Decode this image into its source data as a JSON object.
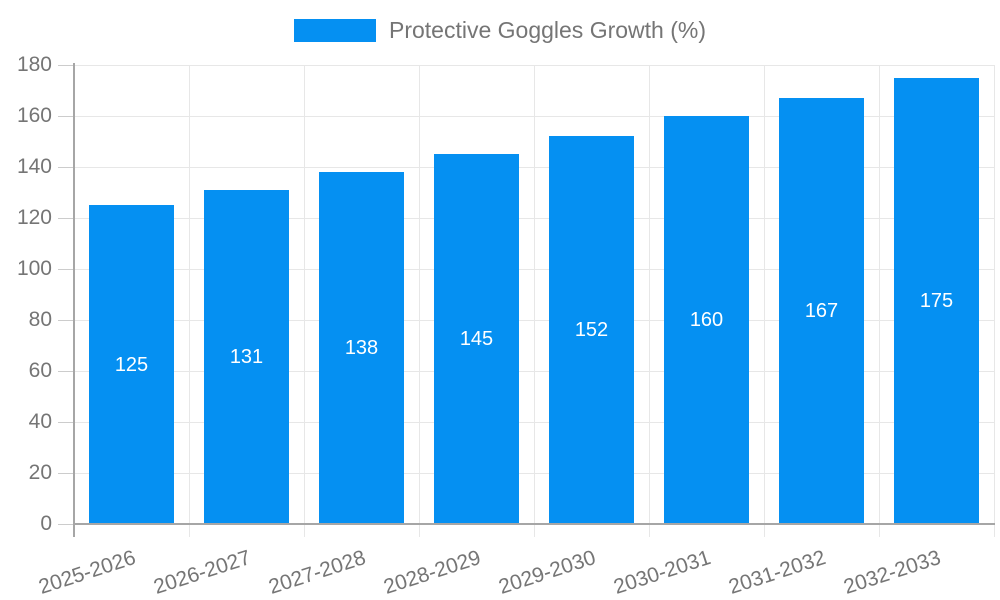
{
  "legend": {
    "label": "Protective Goggles Growth (%)",
    "swatch_color": "#0590f2"
  },
  "chart_data": {
    "type": "bar",
    "title": "Protective Goggles Growth (%)",
    "categories": [
      "2025-2026",
      "2026-2027",
      "2027-2028",
      "2028-2029",
      "2029-2030",
      "2030-2031",
      "2031-2032",
      "2032-2033"
    ],
    "values": [
      125,
      131,
      138,
      145,
      152,
      160,
      167,
      175
    ],
    "xlabel": "",
    "ylabel": "",
    "ylim": [
      0,
      180
    ],
    "yticks": [
      0,
      20,
      40,
      60,
      80,
      100,
      120,
      140,
      160,
      180
    ],
    "grid": true,
    "legend_position": "top",
    "bar_color": "#0590f2",
    "value_label_color": "#ffffff"
  },
  "colors": {
    "bar": "#0590f2",
    "grid": "#e7e7e7",
    "tick": "#cccccc",
    "axis": "#a6a6a6",
    "text": "#757575",
    "bar_label": "#ffffff",
    "background": "#ffffff"
  }
}
